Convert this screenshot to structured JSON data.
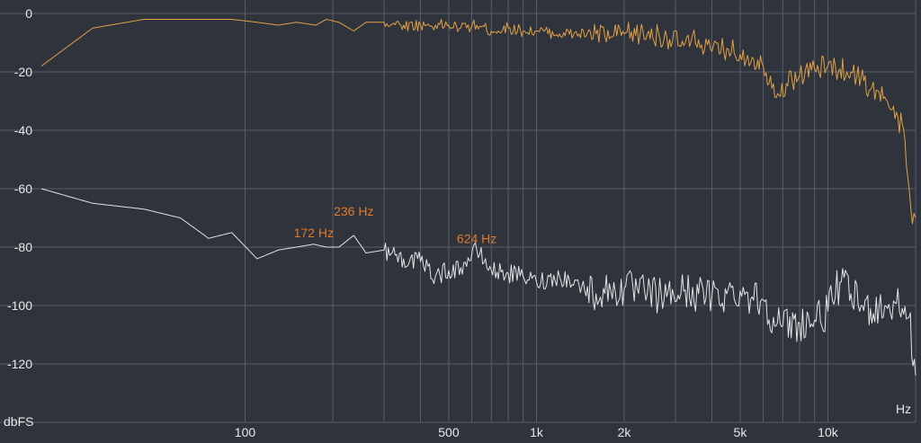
{
  "chart_data": {
    "type": "line",
    "xscale": "log",
    "xlim": [
      20,
      20000
    ],
    "ylim": [
      -140,
      0
    ],
    "grid": true,
    "y_ticks": [
      {
        "value": 0,
        "label": "0"
      },
      {
        "value": -20,
        "label": "-20"
      },
      {
        "value": -40,
        "label": "-40"
      },
      {
        "value": -60,
        "label": "-60"
      },
      {
        "value": -80,
        "label": "-80"
      },
      {
        "value": -100,
        "label": "-100"
      },
      {
        "value": -120,
        "label": "-120"
      }
    ],
    "y_unit_label": "dbFS",
    "x_unit_label": "Hz",
    "x_ticks": [
      {
        "value": 100,
        "label": "100"
      },
      {
        "value": 500,
        "label": "500"
      },
      {
        "value": 1000,
        "label": "1k"
      },
      {
        "value": 2000,
        "label": "2k"
      },
      {
        "value": 5000,
        "label": "5k"
      },
      {
        "value": 10000,
        "label": "10k"
      }
    ],
    "x_gridlines": [
      100,
      200,
      300,
      400,
      500,
      600,
      700,
      800,
      900,
      1000,
      2000,
      3000,
      4000,
      5000,
      6000,
      7000,
      8000,
      9000,
      10000,
      20000
    ],
    "series": [
      {
        "color": "#e0a044",
        "x": [
          20,
          30,
          45,
          60,
          75,
          90,
          110,
          130,
          150,
          175,
          190,
          210,
          236,
          260,
          300,
          350,
          400,
          450,
          500,
          550,
          624,
          700,
          800,
          900,
          1000,
          1200,
          1400,
          1600,
          1800,
          2000,
          2400,
          2800,
          3200,
          3600,
          4000,
          4500,
          5000,
          5500,
          6000,
          6500,
          6800,
          7200,
          8000,
          9000,
          10000,
          11000,
          12000,
          13000,
          14000,
          15000,
          16000,
          17000,
          18000,
          19000,
          19500,
          20000
        ],
        "y": [
          -18,
          -5,
          -2,
          -2,
          -2,
          -2,
          -3,
          -4,
          -3,
          -4,
          -2,
          -3,
          -6,
          -3,
          -3,
          -4,
          -4,
          -4,
          -4,
          -5,
          -4,
          -6,
          -5,
          -6,
          -6,
          -7,
          -7,
          -7,
          -8,
          -7,
          -7,
          -8,
          -11,
          -9,
          -13,
          -12,
          -14,
          -15,
          -18,
          -24,
          -28,
          -24,
          -21,
          -19,
          -18,
          -19,
          -20,
          -22,
          -26,
          -27,
          -30,
          -36,
          -38,
          -60,
          -72,
          -70
        ]
      },
      {
        "color": "#e4e4e4",
        "x": [
          20,
          30,
          45,
          60,
          75,
          90,
          110,
          130,
          150,
          172,
          190,
          210,
          236,
          260,
          300,
          350,
          400,
          450,
          500,
          550,
          624,
          700,
          800,
          900,
          1000,
          1200,
          1400,
          1600,
          1800,
          2000,
          2400,
          2800,
          3200,
          3600,
          4000,
          4500,
          5000,
          5500,
          6000,
          6500,
          7000,
          8000,
          9000,
          10000,
          11000,
          12000,
          13000,
          14000,
          15000,
          16000,
          17000,
          18000,
          19000,
          20000
        ],
        "y": [
          -60,
          -65,
          -67,
          -70,
          -77,
          -75,
          -84,
          -81,
          -80,
          -79,
          -80,
          -80,
          -76,
          -82,
          -81,
          -84,
          -85,
          -90,
          -88,
          -87,
          -81,
          -88,
          -89,
          -90,
          -92,
          -90,
          -93,
          -96,
          -95,
          -94,
          -96,
          -97,
          -95,
          -96,
          -97,
          -96,
          -95,
          -97,
          -98,
          -104,
          -107,
          -106,
          -105,
          -102,
          -92,
          -96,
          -100,
          -101,
          -100,
          -101,
          -99,
          -101,
          -104,
          -124
        ]
      }
    ],
    "annotations": [
      {
        "x": 172,
        "y": -79,
        "label": "172 Hz"
      },
      {
        "x": 236,
        "y": -76,
        "label": "236 Hz"
      },
      {
        "x": 624,
        "y": -81,
        "label": "624 Hz"
      }
    ]
  }
}
